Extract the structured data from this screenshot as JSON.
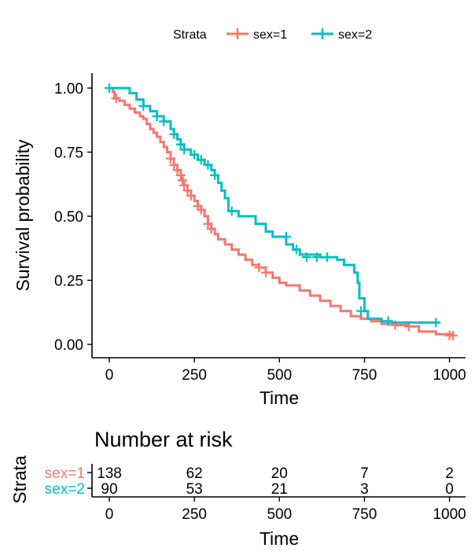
{
  "chart_data": {
    "type": "line",
    "subtype": "kaplan-meier",
    "ylabel": "Survival probability",
    "xlabel": "Time",
    "xlim": [
      0,
      1020
    ],
    "ylim": [
      0,
      1
    ],
    "x_ticks": [
      0,
      250,
      500,
      750,
      1000
    ],
    "y_ticks": [
      "0.00",
      "0.25",
      "0.50",
      "0.75",
      "1.00"
    ],
    "grid": false,
    "legend": {
      "title": "Strata",
      "position": "top",
      "entries": [
        "sex=1",
        "sex=2"
      ]
    },
    "series": [
      {
        "name": "sex=1",
        "color": "#F8766D",
        "steps": [
          [
            0,
            1.0
          ],
          [
            10,
            0.986
          ],
          [
            15,
            0.96
          ],
          [
            30,
            0.95
          ],
          [
            45,
            0.935
          ],
          [
            60,
            0.92
          ],
          [
            75,
            0.905
          ],
          [
            90,
            0.89
          ],
          [
            100,
            0.88
          ],
          [
            110,
            0.86
          ],
          [
            120,
            0.84
          ],
          [
            130,
            0.825
          ],
          [
            140,
            0.81
          ],
          [
            150,
            0.79
          ],
          [
            160,
            0.77
          ],
          [
            170,
            0.75
          ],
          [
            180,
            0.725
          ],
          [
            190,
            0.7
          ],
          [
            200,
            0.68
          ],
          [
            210,
            0.66
          ],
          [
            215,
            0.64
          ],
          [
            220,
            0.62
          ],
          [
            230,
            0.6
          ],
          [
            240,
            0.58
          ],
          [
            250,
            0.56
          ],
          [
            260,
            0.54
          ],
          [
            270,
            0.525
          ],
          [
            280,
            0.5
          ],
          [
            290,
            0.47
          ],
          [
            300,
            0.45
          ],
          [
            310,
            0.43
          ],
          [
            320,
            0.41
          ],
          [
            340,
            0.39
          ],
          [
            360,
            0.37
          ],
          [
            380,
            0.35
          ],
          [
            400,
            0.33
          ],
          [
            420,
            0.31
          ],
          [
            440,
            0.3
          ],
          [
            460,
            0.28
          ],
          [
            480,
            0.26
          ],
          [
            500,
            0.24
          ],
          [
            520,
            0.23
          ],
          [
            560,
            0.21
          ],
          [
            590,
            0.19
          ],
          [
            620,
            0.17
          ],
          [
            650,
            0.15
          ],
          [
            680,
            0.13
          ],
          [
            710,
            0.11
          ],
          [
            740,
            0.1
          ],
          [
            770,
            0.09
          ],
          [
            800,
            0.08
          ],
          [
            840,
            0.075
          ],
          [
            880,
            0.07
          ],
          [
            910,
            0.05
          ],
          [
            960,
            0.04
          ],
          [
            1010,
            0.035
          ]
        ],
        "censor": [
          [
            20,
            0.96
          ],
          [
            180,
            0.725
          ],
          [
            190,
            0.7
          ],
          [
            200,
            0.68
          ],
          [
            210,
            0.66
          ],
          [
            215,
            0.64
          ],
          [
            220,
            0.62
          ],
          [
            230,
            0.6
          ],
          [
            240,
            0.58
          ],
          [
            260,
            0.54
          ],
          [
            270,
            0.525
          ],
          [
            290,
            0.47
          ],
          [
            300,
            0.45
          ],
          [
            440,
            0.3
          ],
          [
            460,
            0.28
          ],
          [
            840,
            0.075
          ],
          [
            880,
            0.07
          ],
          [
            1000,
            0.035
          ],
          [
            1010,
            0.035
          ]
        ]
      },
      {
        "name": "sex=2",
        "color": "#00BFC4",
        "steps": [
          [
            0,
            1.0
          ],
          [
            60,
            0.98
          ],
          [
            80,
            0.955
          ],
          [
            100,
            0.93
          ],
          [
            120,
            0.91
          ],
          [
            140,
            0.89
          ],
          [
            160,
            0.87
          ],
          [
            180,
            0.84
          ],
          [
            190,
            0.82
          ],
          [
            200,
            0.8
          ],
          [
            210,
            0.78
          ],
          [
            220,
            0.76
          ],
          [
            240,
            0.74
          ],
          [
            260,
            0.72
          ],
          [
            280,
            0.7
          ],
          [
            300,
            0.68
          ],
          [
            310,
            0.66
          ],
          [
            320,
            0.63
          ],
          [
            330,
            0.6
          ],
          [
            340,
            0.57
          ],
          [
            350,
            0.52
          ],
          [
            380,
            0.5
          ],
          [
            430,
            0.47
          ],
          [
            460,
            0.44
          ],
          [
            480,
            0.42
          ],
          [
            520,
            0.39
          ],
          [
            540,
            0.37
          ],
          [
            560,
            0.35
          ],
          [
            620,
            0.34
          ],
          [
            670,
            0.33
          ],
          [
            690,
            0.31
          ],
          [
            720,
            0.28
          ],
          [
            730,
            0.24
          ],
          [
            735,
            0.18
          ],
          [
            750,
            0.13
          ],
          [
            760,
            0.1
          ],
          [
            800,
            0.09
          ],
          [
            830,
            0.085
          ]
        ],
        "censor": [
          [
            0,
            1.0
          ],
          [
            100,
            0.93
          ],
          [
            140,
            0.89
          ],
          [
            160,
            0.87
          ],
          [
            190,
            0.82
          ],
          [
            210,
            0.78
          ],
          [
            220,
            0.76
          ],
          [
            250,
            0.74
          ],
          [
            270,
            0.72
          ],
          [
            290,
            0.7
          ],
          [
            310,
            0.66
          ],
          [
            360,
            0.52
          ],
          [
            520,
            0.42
          ],
          [
            550,
            0.37
          ],
          [
            580,
            0.34
          ],
          [
            610,
            0.34
          ],
          [
            640,
            0.34
          ],
          [
            740,
            0.13
          ],
          [
            820,
            0.09
          ],
          [
            960,
            0.085
          ]
        ],
        "end_x": 970
      }
    ],
    "risk_table": {
      "title": "Number at risk",
      "ylabel": "Strata",
      "xlabel": "Time",
      "x_ticks": [
        0,
        250,
        500,
        750,
        1000
      ],
      "rows": [
        {
          "name": "sex=1",
          "color": "#F8766D",
          "values": [
            138,
            62,
            20,
            7,
            2
          ]
        },
        {
          "name": "sex=2",
          "color": "#00BFC4",
          "values": [
            90,
            53,
            21,
            3,
            0
          ]
        }
      ]
    }
  }
}
